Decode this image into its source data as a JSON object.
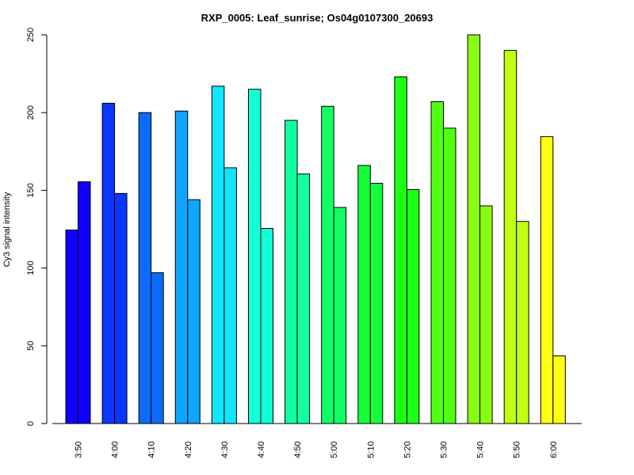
{
  "chart_data": {
    "type": "bar",
    "title": "RXP_0005: Leaf_sunrise; Os04g0107300_20693",
    "xlabel": "",
    "ylabel": "Cy3 signal intensity",
    "ylim": [
      0,
      250
    ],
    "yticks": [
      0,
      50,
      100,
      150,
      200,
      250
    ],
    "grid": false,
    "categories": [
      "3:50",
      "4:00",
      "4:10",
      "4:20",
      "4:30",
      "4:40",
      "4:50",
      "5:00",
      "5:10",
      "5:20",
      "5:30",
      "5:40",
      "5:50",
      "6:00"
    ],
    "colors": [
      "#1000FF",
      "#0A36FF",
      "#0B6CFF",
      "#10A6FF",
      "#12E6FF",
      "#12FFD8",
      "#12FFA0",
      "#12FF64",
      "#14FF3A",
      "#1AFF12",
      "#50FF12",
      "#88FF12",
      "#C2FF12",
      "#FFFF12"
    ],
    "series": [
      {
        "values": [
          124.5,
          206,
          200,
          201,
          217,
          215,
          195,
          204,
          166,
          223,
          207,
          250,
          240,
          184.5
        ]
      },
      {
        "values": [
          155.5,
          148,
          97,
          144,
          164.5,
          125.5,
          160.5,
          139,
          154.5,
          150.5,
          190,
          140,
          130,
          43.5
        ]
      }
    ]
  }
}
